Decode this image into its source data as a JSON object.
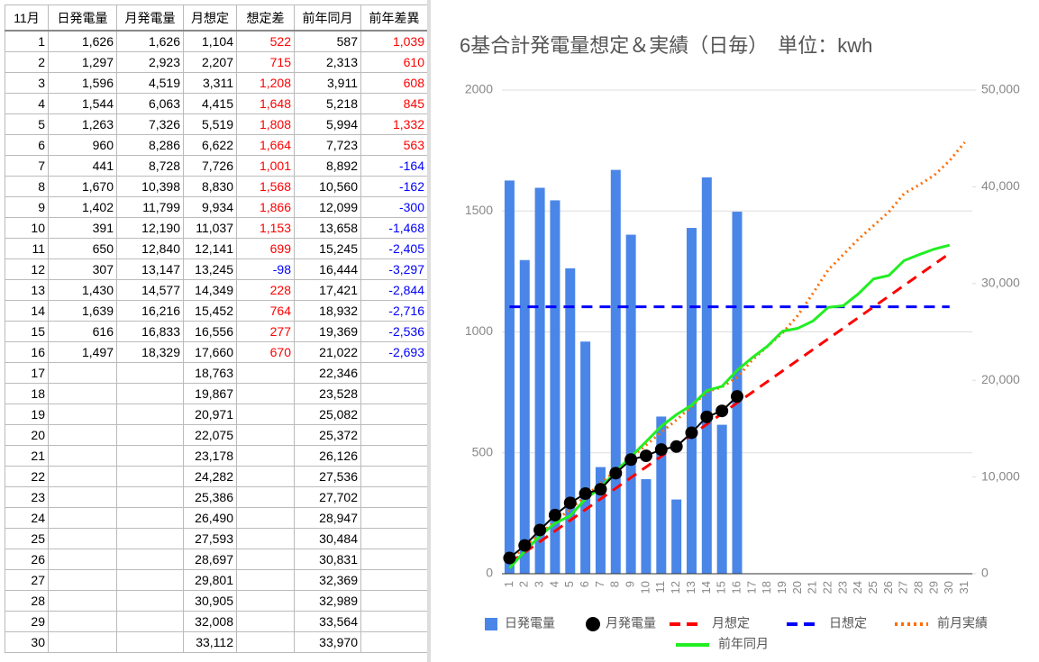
{
  "table": {
    "header": [
      "11月",
      "日発電量",
      "月発電量",
      "月想定",
      "想定差",
      "前年同月",
      "前年差異"
    ],
    "rows": [
      [
        "1",
        "1,626",
        "1,626",
        "1,104",
        "522",
        "587",
        "1,039"
      ],
      [
        "2",
        "1,297",
        "2,923",
        "2,207",
        "715",
        "2,313",
        "610"
      ],
      [
        "3",
        "1,596",
        "4,519",
        "3,311",
        "1,208",
        "3,911",
        "608"
      ],
      [
        "4",
        "1,544",
        "6,063",
        "4,415",
        "1,648",
        "5,218",
        "845"
      ],
      [
        "5",
        "1,263",
        "7,326",
        "5,519",
        "1,808",
        "5,994",
        "1,332"
      ],
      [
        "6",
        "960",
        "8,286",
        "6,622",
        "1,664",
        "7,723",
        "563"
      ],
      [
        "7",
        "441",
        "8,728",
        "7,726",
        "1,001",
        "8,892",
        "-164"
      ],
      [
        "8",
        "1,670",
        "10,398",
        "8,830",
        "1,568",
        "10,560",
        "-162"
      ],
      [
        "9",
        "1,402",
        "11,799",
        "9,934",
        "1,866",
        "12,099",
        "-300"
      ],
      [
        "10",
        "391",
        "12,190",
        "11,037",
        "1,153",
        "13,658",
        "-1,468"
      ],
      [
        "11",
        "650",
        "12,840",
        "12,141",
        "699",
        "15,245",
        "-2,405"
      ],
      [
        "12",
        "307",
        "13,147",
        "13,245",
        "-98",
        "16,444",
        "-3,297"
      ],
      [
        "13",
        "1,430",
        "14,577",
        "14,349",
        "228",
        "17,421",
        "-2,844"
      ],
      [
        "14",
        "1,639",
        "16,216",
        "15,452",
        "764",
        "18,932",
        "-2,716"
      ],
      [
        "15",
        "616",
        "16,833",
        "16,556",
        "277",
        "19,369",
        "-2,536"
      ],
      [
        "16",
        "1,497",
        "18,329",
        "17,660",
        "670",
        "21,022",
        "-2,693"
      ],
      [
        "17",
        null,
        null,
        "18,763",
        null,
        "22,346",
        null
      ],
      [
        "18",
        null,
        null,
        "19,867",
        null,
        "23,528",
        null
      ],
      [
        "19",
        null,
        null,
        "20,971",
        null,
        "25,082",
        null
      ],
      [
        "20",
        null,
        null,
        "22,075",
        null,
        "25,372",
        null
      ],
      [
        "21",
        null,
        null,
        "23,178",
        null,
        "26,126",
        null
      ],
      [
        "22",
        null,
        null,
        "24,282",
        null,
        "27,536",
        null
      ],
      [
        "23",
        null,
        null,
        "25,386",
        null,
        "27,702",
        null
      ],
      [
        "24",
        null,
        null,
        "26,490",
        null,
        "28,947",
        null
      ],
      [
        "25",
        null,
        null,
        "27,593",
        null,
        "30,484",
        null
      ],
      [
        "26",
        null,
        null,
        "28,697",
        null,
        "30,831",
        null
      ],
      [
        "27",
        null,
        null,
        "29,801",
        null,
        "32,369",
        null
      ],
      [
        "28",
        null,
        null,
        "30,905",
        null,
        "32,989",
        null
      ],
      [
        "29",
        null,
        null,
        "32,008",
        null,
        "33,564",
        null
      ],
      [
        "30",
        null,
        null,
        "33,112",
        null,
        "33,970",
        null
      ]
    ]
  },
  "chart_data": {
    "type": "combo",
    "title": "6基合計発電量想定＆実績（日毎）　単位：kwh",
    "categories": [
      "1",
      "2",
      "3",
      "4",
      "5",
      "6",
      "7",
      "8",
      "9",
      "10",
      "11",
      "12",
      "13",
      "14",
      "15",
      "16",
      "17",
      "18",
      "19",
      "20",
      "21",
      "22",
      "23",
      "24",
      "25",
      "26",
      "27",
      "28",
      "29",
      "30",
      "31"
    ],
    "ylim": [
      0,
      2000
    ],
    "yticks": [
      0,
      500,
      1000,
      1500,
      2000
    ],
    "y2lim": [
      0,
      50000
    ],
    "y2ticks": [
      0,
      {
        "value": 10000,
        "label": "10,000"
      },
      {
        "value": 20000,
        "label": "20,000"
      },
      {
        "value": 30000,
        "label": "30,000"
      },
      {
        "value": 40000,
        "label": "40,000"
      },
      {
        "value": 50000,
        "label": "50,000"
      }
    ],
    "grid": true,
    "series": [
      {
        "name": "日発電量",
        "style": "bar",
        "color": "#4a86e8",
        "values": [
          1626,
          1297,
          1596,
          1544,
          1263,
          960,
          441,
          1670,
          1402,
          391,
          650,
          307,
          1430,
          1639,
          616,
          1497,
          null,
          null,
          null,
          null,
          null,
          null,
          null,
          null,
          null,
          null,
          null,
          null,
          null,
          null,
          null
        ]
      },
      {
        "name": "月発電量",
        "style": "dots",
        "color": "#000000",
        "axis": "y2",
        "values": [
          1626,
          2923,
          4519,
          6063,
          7326,
          8286,
          8728,
          10398,
          11799,
          12190,
          12840,
          13147,
          14577,
          16216,
          16833,
          18329,
          null,
          null,
          null,
          null,
          null,
          null,
          null,
          null,
          null,
          null,
          null,
          null,
          null,
          null,
          null
        ]
      },
      {
        "name": "月想定",
        "style": "dashed",
        "color": "#ff0000",
        "axis": "y2",
        "values": [
          1104,
          2207,
          3311,
          4415,
          5519,
          6622,
          7726,
          8830,
          9934,
          11037,
          12141,
          13245,
          14349,
          15452,
          16556,
          17660,
          18763,
          19867,
          20971,
          22075,
          23178,
          24282,
          25386,
          26490,
          27593,
          28697,
          29801,
          30905,
          32008,
          33112,
          null
        ]
      },
      {
        "name": "日想定",
        "style": "dashed",
        "color": "#0000ff",
        "values": [
          1104,
          1104,
          1104,
          1104,
          1104,
          1104,
          1104,
          1104,
          1104,
          1104,
          1104,
          1104,
          1104,
          1104,
          1104,
          1104,
          1104,
          1104,
          1104,
          1104,
          1104,
          1104,
          1104,
          1104,
          1104,
          1104,
          1104,
          1104,
          1104,
          1104,
          null
        ]
      },
      {
        "name": "前月実績",
        "style": "dotted",
        "color": "#ff6d01",
        "axis": "y2",
        "values": [
          1400,
          2700,
          4100,
          5400,
          6700,
          8000,
          9300,
          10700,
          12000,
          13300,
          14600,
          15900,
          17300,
          18800,
          19300,
          20300,
          22100,
          23500,
          24900,
          26700,
          29000,
          31400,
          33000,
          34600,
          36000,
          37400,
          39300,
          40200,
          41200,
          42700,
          44600
        ]
      },
      {
        "name": "前年同月",
        "style": "line",
        "color": "#22ee22",
        "axis": "y2",
        "values": [
          587,
          2313,
          3911,
          5218,
          5994,
          7723,
          8892,
          10560,
          12099,
          13658,
          15245,
          16444,
          17421,
          18932,
          19369,
          21022,
          22346,
          23528,
          25082,
          25372,
          26126,
          27536,
          27702,
          28947,
          30484,
          30831,
          32369,
          32989,
          33564,
          33970,
          null
        ]
      }
    ]
  }
}
